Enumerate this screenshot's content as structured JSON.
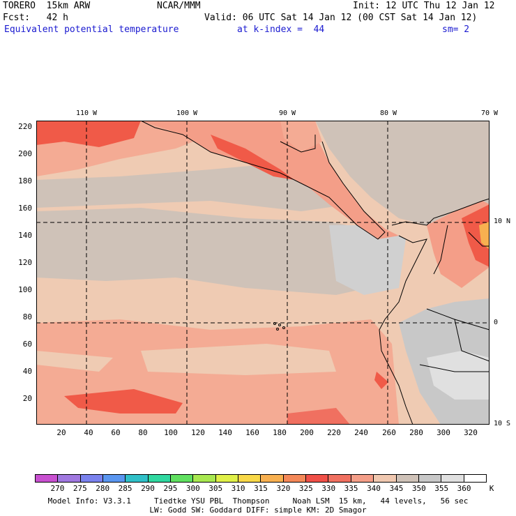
{
  "header": {
    "model": "TORERO  15km ARW",
    "org": "NCAR/MMM",
    "init": "Init: 12 UTC Thu 12 Jan 12",
    "fcst": "Fcst:   42 h",
    "valid": "Valid: 06 UTC Sat 14 Jan 12 (00 CST Sat 14 Jan 12)",
    "field": "Equivalent potential temperature",
    "level": "at k-index =  44",
    "smooth": "sm= 2"
  },
  "axes": {
    "y_ticks": [
      "220",
      "200",
      "180",
      "160",
      "140",
      "120",
      "100",
      "80",
      "60",
      "40",
      "20"
    ],
    "x_ticks": [
      "20",
      "40",
      "60",
      "80",
      "100",
      "120",
      "140",
      "160",
      "180",
      "200",
      "220",
      "240",
      "260",
      "280",
      "300",
      "320"
    ],
    "lon_ticks": [
      "110 W",
      "100 W",
      "90 W",
      "80 W",
      "70 W"
    ],
    "lat_ticks": [
      "10 N",
      "0",
      "10 S"
    ]
  },
  "colorbar": {
    "labels": [
      "270",
      "275",
      "280",
      "285",
      "290",
      "295",
      "300",
      "305",
      "310",
      "315",
      "320",
      "325",
      "330",
      "335",
      "340",
      "345",
      "350",
      "355",
      "360"
    ],
    "unit": "K",
    "colors": [
      "#c850d0",
      "#a078e0",
      "#7a82ee",
      "#5a96f0",
      "#30c0c8",
      "#30d8a0",
      "#60e060",
      "#a8e850",
      "#e0f048",
      "#f8d848",
      "#f8b050",
      "#f48858",
      "#f05048",
      "#f07060",
      "#f49e88",
      "#f0c8b0",
      "#cfc2b8",
      "#c8c8c8",
      "#e0e0e0",
      "#ffffff"
    ]
  },
  "footer": {
    "line1": "Model Info: V3.3.1     Tiedtke YSU PBL  Thompson     Noah LSM  15 km,   44 levels,   56 sec",
    "line2": "LW: Godd SW: Goddard DIFF: simple KM: 2D Smagor"
  },
  "map": {
    "colors": {
      "ocean_warm": "#f4ab94",
      "ocean_mid": "#efcbb3",
      "ocean_cool": "#cfc2b8",
      "land_dry": "#d0d0d0",
      "land_hot": "#f05a48",
      "gridline": "#000000"
    }
  }
}
